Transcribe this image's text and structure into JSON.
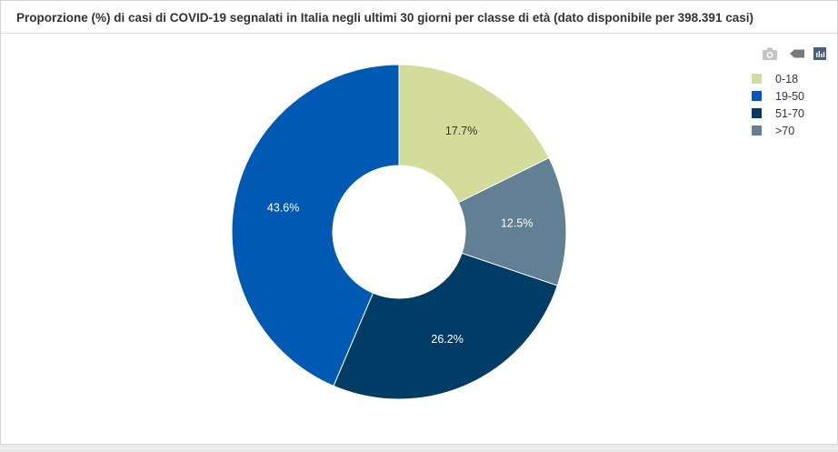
{
  "panel": {
    "title": "Proporzione (%) di casi di COVID-19 segnalati in Italia negli ultimi 30 giorni per classe di età (dato disponibile per 398.391 casi)"
  },
  "toolbar": {
    "icons": [
      "camera-icon",
      "tag-icon",
      "bar-chart-icon"
    ]
  },
  "chart_data": {
    "type": "pie",
    "style": "donut",
    "title": "Proporzione (%) di casi di COVID-19 segnalati in Italia negli ultimi 30 giorni per classe di età (dato disponibile per 398.391 casi)",
    "categories": [
      "0-18",
      "19-50",
      "51-70",
      ">70"
    ],
    "values": [
      17.7,
      43.6,
      26.2,
      12.5
    ],
    "labels": [
      "17.7%",
      "43.6%",
      "26.2%",
      "12.5%"
    ],
    "colors": [
      "#d3dc9a",
      "#0059b3",
      "#003d66",
      "#627f93"
    ],
    "slice_order_clockwise_from_top": [
      "0-18",
      ">70",
      "51-70",
      "19-50"
    ],
    "legend_placement": "top-right"
  }
}
